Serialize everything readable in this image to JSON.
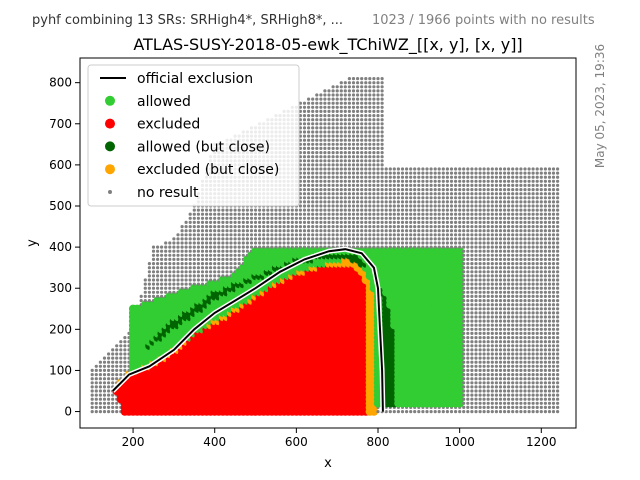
{
  "header": {
    "left_text": "pyhf combining 13 SRs: SRHigh4*, SRHigh8*, ...",
    "right_text": "1023 / 1966 points with no results"
  },
  "side_timestamp": "May 05, 2023, 19:36",
  "chart_data": {
    "type": "scatter",
    "title": "ATLAS-SUSY-2018-05-ewk_TChiWZ_[[x, y], [x, y]]",
    "xlabel": "x",
    "ylabel": "y",
    "xlim": [
      70,
      1285
    ],
    "ylim": [
      -40,
      860
    ],
    "xticks": [
      200,
      400,
      600,
      800,
      1000,
      1200
    ],
    "yticks": [
      0,
      100,
      200,
      300,
      400,
      500,
      600,
      700,
      800
    ],
    "grid": false,
    "legend_position": "top-left",
    "legend": [
      {
        "label": "official exclusion",
        "kind": "line",
        "color": "#000000"
      },
      {
        "label": "allowed",
        "kind": "marker",
        "color": "#32cd32"
      },
      {
        "label": "excluded",
        "kind": "marker",
        "color": "#ff0000"
      },
      {
        "label": "allowed (but close)",
        "kind": "marker",
        "color": "#006400"
      },
      {
        "label": "excluded (but close)",
        "kind": "marker",
        "color": "#ffa500"
      },
      {
        "label": "no result",
        "kind": "dot",
        "color": "#808080"
      }
    ],
    "grid_step": 10,
    "no_result_region": [
      [
        100,
        0
      ],
      [
        100,
        100
      ],
      [
        200,
        200
      ],
      [
        250,
        400
      ],
      [
        300,
        420
      ],
      [
        350,
        500
      ],
      [
        400,
        650
      ],
      [
        750,
        820
      ],
      [
        820,
        820
      ],
      [
        820,
        600
      ],
      [
        1250,
        600
      ],
      [
        1250,
        0
      ]
    ],
    "allowed_region": [
      [
        200,
        0
      ],
      [
        200,
        250
      ],
      [
        350,
        300
      ],
      [
        450,
        330
      ],
      [
        500,
        400
      ],
      [
        1010,
        400
      ],
      [
        1010,
        20
      ],
      [
        160,
        20
      ]
    ],
    "allowed_close_band": [
      [
        230,
        150
      ],
      [
        300,
        220
      ],
      [
        400,
        290
      ],
      [
        500,
        330
      ],
      [
        600,
        370
      ],
      [
        700,
        390
      ],
      [
        760,
        380
      ],
      [
        800,
        330
      ],
      [
        830,
        260
      ],
      [
        850,
        150
      ],
      [
        850,
        20
      ],
      [
        820,
        20
      ],
      [
        820,
        260
      ],
      [
        790,
        350
      ],
      [
        700,
        380
      ],
      [
        600,
        360
      ],
      [
        500,
        320
      ],
      [
        400,
        270
      ],
      [
        300,
        200
      ]
    ],
    "excluded_region": [
      [
        160,
        50
      ],
      [
        190,
        90
      ],
      [
        250,
        110
      ],
      [
        300,
        140
      ],
      [
        360,
        190
      ],
      [
        450,
        240
      ],
      [
        550,
        310
      ],
      [
        620,
        345
      ],
      [
        680,
        360
      ],
      [
        730,
        360
      ],
      [
        765,
        330
      ],
      [
        780,
        280
      ],
      [
        780,
        0
      ],
      [
        180,
        0
      ]
    ],
    "excluded_close_band": [
      [
        170,
        70
      ],
      [
        230,
        110
      ],
      [
        300,
        150
      ],
      [
        400,
        220
      ],
      [
        500,
        280
      ],
      [
        600,
        330
      ],
      [
        680,
        360
      ],
      [
        730,
        375
      ],
      [
        770,
        350
      ],
      [
        790,
        300
      ],
      [
        800,
        200
      ],
      [
        800,
        0
      ],
      [
        780,
        0
      ],
      [
        780,
        280
      ],
      [
        765,
        330
      ],
      [
        730,
        360
      ],
      [
        680,
        360
      ],
      [
        620,
        345
      ],
      [
        550,
        310
      ],
      [
        450,
        240
      ],
      [
        360,
        190
      ],
      [
        300,
        140
      ],
      [
        250,
        110
      ],
      [
        190,
        90
      ],
      [
        160,
        50
      ]
    ],
    "official_exclusion": [
      [
        150,
        50
      ],
      [
        190,
        90
      ],
      [
        240,
        110
      ],
      [
        300,
        150
      ],
      [
        350,
        200
      ],
      [
        400,
        240
      ],
      [
        450,
        270
      ],
      [
        500,
        300
      ],
      [
        560,
        340
      ],
      [
        620,
        370
      ],
      [
        680,
        390
      ],
      [
        720,
        395
      ],
      [
        760,
        385
      ],
      [
        790,
        350
      ],
      [
        800,
        300
      ],
      [
        805,
        200
      ],
      [
        810,
        100
      ],
      [
        812,
        0
      ]
    ]
  }
}
